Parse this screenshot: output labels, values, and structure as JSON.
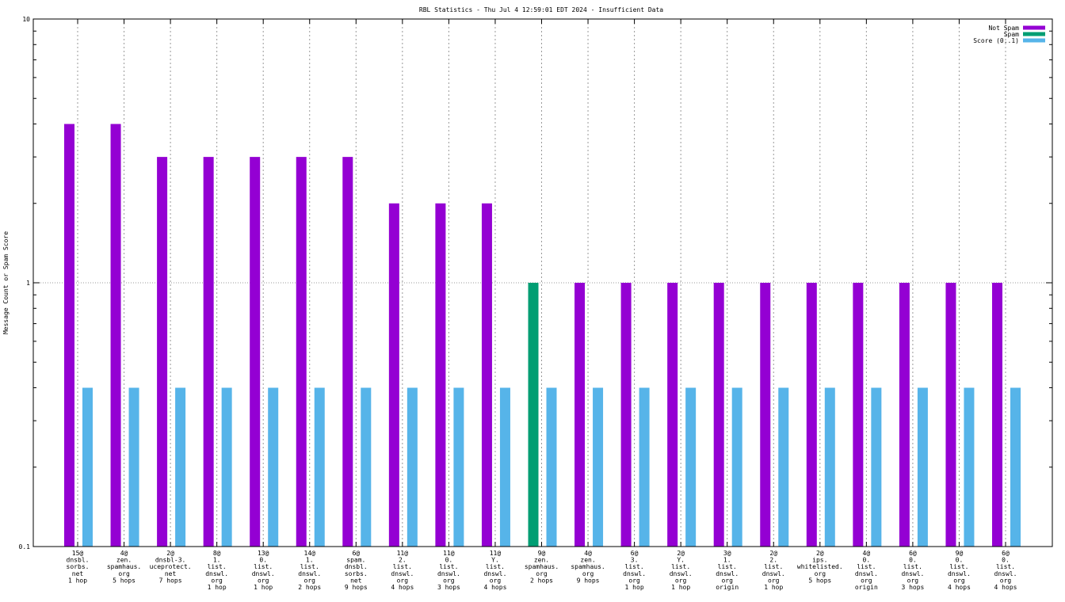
{
  "chart_data": {
    "type": "bar",
    "title": "RBL Statistics - Thu Jul  4 12:59:01 EDT 2024 - Insufficient Data",
    "xlabel": "",
    "ylabel": "Message Count or Spam Score",
    "yscale": "log",
    "ylim": [
      0.1,
      10
    ],
    "yticks": [
      "10",
      "1",
      "0.1"
    ],
    "ytick_values": [
      10,
      1,
      0.1
    ],
    "grid": true,
    "legend_position": "top-right",
    "categories": [
      [
        "15@",
        "dnsbl.",
        "sorbs.",
        "net",
        "1 hop"
      ],
      [
        "4@",
        "zen.",
        "spamhaus.",
        "org",
        "5 hops"
      ],
      [
        "2@",
        "dnsbl-3.",
        "uceprotect.",
        "net",
        "7 hops"
      ],
      [
        "8@",
        "1.",
        "list.",
        "dnswl.",
        "org",
        "1 hop"
      ],
      [
        "13@",
        "0.",
        "list.",
        "dnswl.",
        "org",
        "1 hop"
      ],
      [
        "14@",
        "1.",
        "list.",
        "dnswl.",
        "org",
        "2 hops"
      ],
      [
        "6@",
        "spam.",
        "dnsbl.",
        "sorbs.",
        "net",
        "9 hops"
      ],
      [
        "11@",
        "2.",
        "list.",
        "dnswl.",
        "org",
        "4 hops"
      ],
      [
        "11@",
        "0.",
        "list.",
        "dnswl.",
        "org",
        "3 hops"
      ],
      [
        "11@",
        "Y.",
        "list.",
        "dnswl.",
        "org",
        "4 hops"
      ],
      [
        "9@",
        "zen.",
        "spamhaus.",
        "org",
        "2 hops"
      ],
      [
        "4@",
        "zen.",
        "spamhaus.",
        "org",
        "9 hops"
      ],
      [
        "6@",
        "3.",
        "list.",
        "dnswl.",
        "org",
        "1 hop"
      ],
      [
        "2@",
        "Y.",
        "list.",
        "dnswl.",
        "org",
        "1 hop"
      ],
      [
        "3@",
        "1.",
        "list.",
        "dnswl.",
        "org",
        "origin"
      ],
      [
        "2@",
        "2.",
        "list.",
        "dnswl.",
        "org",
        "1 hop"
      ],
      [
        "2@",
        "ips.",
        "whitelisted.",
        "org",
        "5 hops"
      ],
      [
        "4@",
        "0.",
        "list.",
        "dnswl.",
        "org",
        "origin"
      ],
      [
        "6@",
        "0.",
        "list.",
        "dnswl.",
        "org",
        "3 hops"
      ],
      [
        "9@",
        "0.",
        "list.",
        "dnswl.",
        "org",
        "4 hops"
      ],
      [
        "6@",
        "0.",
        "list.",
        "dnswl.",
        "org",
        "4 hops"
      ]
    ],
    "series": [
      {
        "name": "Not Spam",
        "color": "#9400d3",
        "values": [
          4,
          4,
          3,
          3,
          3,
          3,
          3,
          2,
          2,
          2,
          0,
          1,
          1,
          1,
          1,
          1,
          1,
          1,
          1,
          1,
          1
        ]
      },
      {
        "name": "Spam",
        "color": "#009e73",
        "values": [
          0,
          0,
          0,
          0,
          0,
          0,
          0,
          0,
          0,
          0,
          1,
          0,
          0,
          0,
          0,
          0,
          0,
          0,
          0,
          0,
          0
        ]
      },
      {
        "name": "Score (0..1)",
        "color": "#56b4e9",
        "values": [
          0.4,
          0.4,
          0.4,
          0.4,
          0.4,
          0.4,
          0.4,
          0.4,
          0.4,
          0.4,
          0.4,
          0.4,
          0.4,
          0.4,
          0.4,
          0.4,
          0.4,
          0.4,
          0.4,
          0.4,
          0.4
        ]
      }
    ]
  }
}
